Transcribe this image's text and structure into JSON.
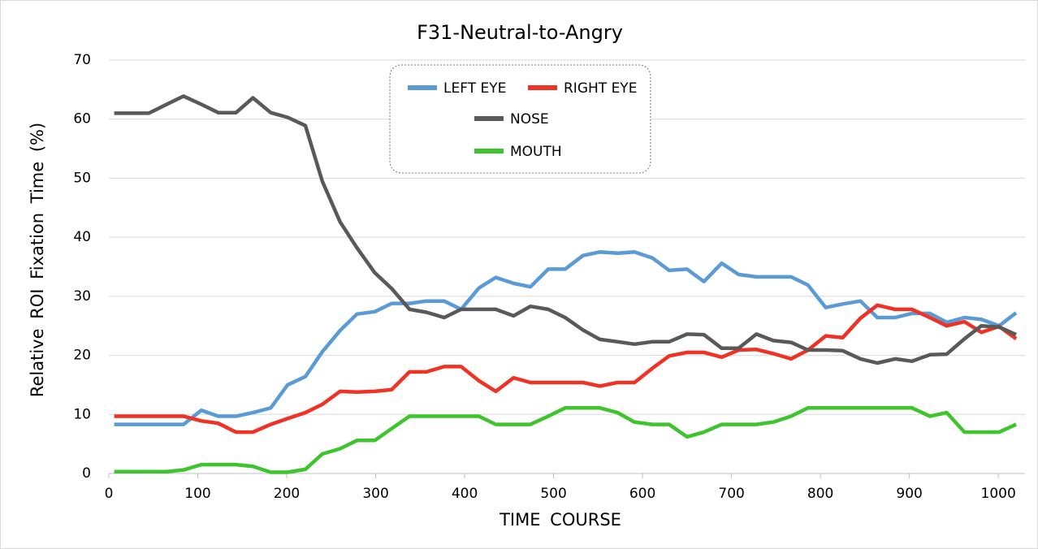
{
  "chart_data": {
    "type": "line",
    "title": "F31-Neutral-to-Angry",
    "x_label": "TIME COURSE",
    "y_label": "Relative ROI Fixation Time (%)",
    "x": [
      6,
      26,
      45,
      65,
      84,
      104,
      123,
      143,
      162,
      182,
      201,
      221,
      240,
      260,
      279,
      299,
      318,
      338,
      357,
      377,
      396,
      416,
      435,
      455,
      474,
      494,
      513,
      533,
      552,
      572,
      591,
      611,
      630,
      650,
      669,
      689,
      708,
      728,
      747,
      767,
      786,
      806,
      825,
      845,
      864,
      884,
      903,
      923,
      942,
      962,
      981,
      1001,
      1020
    ],
    "series": [
      {
        "name": "LEFT EYE",
        "color": "#5b9bd5",
        "values": [
          8.3,
          8.3,
          8.3,
          8.3,
          8.3,
          10.7,
          9.7,
          9.7,
          10.3,
          11.1,
          15,
          16.4,
          20.6,
          24.2,
          27,
          27.4,
          28.8,
          28.8,
          29.2,
          29.2,
          27.8,
          31.4,
          33.2,
          32.2,
          31.6,
          34.6,
          34.6,
          36.9,
          37.5,
          37.3,
          37.5,
          36.5,
          34.4,
          34.6,
          32.5,
          35.6,
          33.7,
          33.3,
          33.3,
          33.3,
          31.9,
          28.1,
          28.7,
          29.2,
          26.4,
          26.4,
          27.1,
          27.1,
          25.6,
          26.4,
          26.1,
          25,
          27.2
        ]
      },
      {
        "name": "RIGHT EYE",
        "color": "#f03224",
        "values": [
          9.7,
          9.7,
          9.7,
          9.7,
          9.7,
          8.9,
          8.5,
          7,
          7,
          8.3,
          9.3,
          10.3,
          11.7,
          13.9,
          13.8,
          13.9,
          14.2,
          17.2,
          17.2,
          18.1,
          18.1,
          15.7,
          13.9,
          16.2,
          15.4,
          15.4,
          15.4,
          15.4,
          14.8,
          15.4,
          15.4,
          17.8,
          19.9,
          20.5,
          20.5,
          19.7,
          20.9,
          21,
          20.3,
          19.4,
          20.9,
          23.3,
          23,
          26.3,
          28.5,
          27.8,
          27.8,
          26.4,
          25,
          25.7,
          23.9,
          24.9,
          22.8
        ]
      },
      {
        "name": "NOSE",
        "color": "#595959",
        "values": [
          61,
          61,
          61,
          62.5,
          63.9,
          62.5,
          61.1,
          61.1,
          63.6,
          61.1,
          60.3,
          58.9,
          49.5,
          42.6,
          38.2,
          34,
          31.3,
          27.8,
          27.3,
          26.4,
          27.8,
          27.8,
          27.8,
          26.7,
          28.3,
          27.8,
          26.4,
          24.3,
          22.7,
          22.3,
          21.9,
          22.3,
          22.3,
          23.6,
          23.5,
          21.2,
          21.2,
          23.6,
          22.5,
          22.2,
          20.9,
          20.9,
          20.8,
          19.4,
          18.7,
          19.4,
          19,
          20.1,
          20.2,
          22.8,
          25,
          24.8,
          23.5
        ]
      },
      {
        "name": "MOUTH",
        "color": "#3ec42c",
        "values": [
          0.3,
          0.3,
          0.3,
          0.3,
          0.6,
          1.5,
          1.5,
          1.5,
          1.2,
          0.2,
          0.2,
          0.7,
          3.3,
          4.2,
          5.6,
          5.6,
          7.6,
          9.7,
          9.7,
          9.7,
          9.7,
          9.7,
          8.3,
          8.3,
          8.3,
          9.7,
          11.1,
          11.1,
          11.1,
          10.3,
          8.7,
          8.3,
          8.3,
          6.2,
          7,
          8.3,
          8.3,
          8.3,
          8.7,
          9.7,
          11.1,
          11.1,
          11.1,
          11.1,
          11.1,
          11.1,
          11.1,
          9.7,
          10.3,
          7,
          7,
          7,
          8.3
        ]
      }
    ],
    "xlim": [
      0,
      1030
    ],
    "xticks": [
      0,
      100,
      200,
      300,
      400,
      500,
      600,
      700,
      800,
      900,
      1000
    ],
    "ylim": [
      0,
      70
    ],
    "yticks": [
      0,
      10,
      20,
      30,
      40,
      50,
      60,
      70
    ],
    "grid": true,
    "legend_position": "top"
  }
}
